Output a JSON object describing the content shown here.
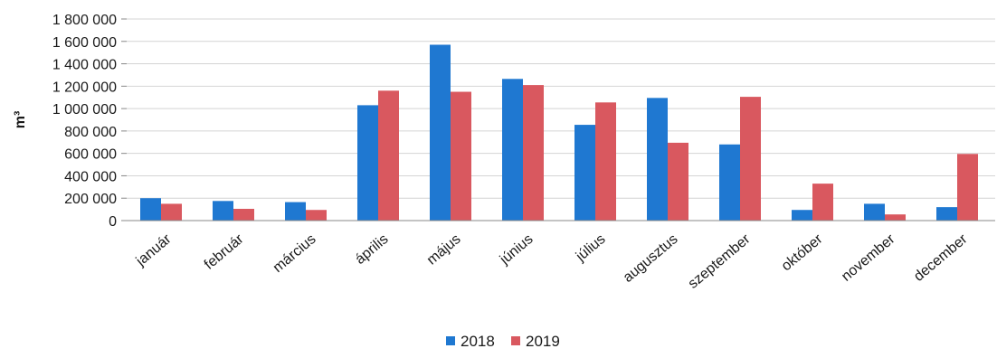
{
  "chart_data": {
    "type": "bar",
    "title": "",
    "xlabel": "",
    "ylabel": "m³",
    "ylim": [
      0,
      1800000
    ],
    "yticks": [
      {
        "value": 0,
        "label": "0"
      },
      {
        "value": 200000,
        "label": "200 000"
      },
      {
        "value": 400000,
        "label": "400 000"
      },
      {
        "value": 600000,
        "label": "600 000"
      },
      {
        "value": 800000,
        "label": "800 000"
      },
      {
        "value": 1000000,
        "label": "1 000 000"
      },
      {
        "value": 1200000,
        "label": "1 200 000"
      },
      {
        "value": 1400000,
        "label": "1 400 000"
      },
      {
        "value": 1600000,
        "label": "1 600 000"
      },
      {
        "value": 1800000,
        "label": "1 800 000"
      }
    ],
    "grid": true,
    "legend_position": "bottom",
    "categories": [
      "január",
      "február",
      "március",
      "április",
      "május",
      "június",
      "július",
      "augusztus",
      "szeptember",
      "október",
      "november",
      "december"
    ],
    "series": [
      {
        "name": "2018",
        "color": "#1f78d1",
        "values": [
          200000,
          175000,
          165000,
          1030000,
          1570000,
          1265000,
          855000,
          1095000,
          680000,
          95000,
          150000,
          120000
        ]
      },
      {
        "name": "2019",
        "color": "#d9585f",
        "values": [
          150000,
          105000,
          95000,
          1160000,
          1150000,
          1210000,
          1055000,
          695000,
          1105000,
          330000,
          55000,
          595000
        ]
      }
    ]
  }
}
